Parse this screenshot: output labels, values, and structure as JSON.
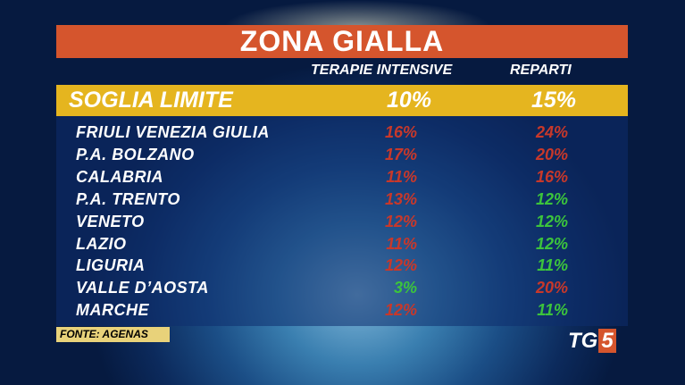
{
  "header": {
    "title": "ZONA GIALLA"
  },
  "table": {
    "columns": [
      "TERAPIE INTENSIVE",
      "REPARTI"
    ],
    "threshold": {
      "label": "SOGLIA LIMITE",
      "terapie_intensive": "10%",
      "reparti": "15%"
    },
    "rows": [
      {
        "region": "FRIULI VENEZIA GIULIA",
        "terapie_intensive": {
          "text": "16%",
          "color": "#c8382a"
        },
        "reparti": {
          "text": "24%",
          "color": "#c8382a"
        }
      },
      {
        "region": "P.A. BOLZANO",
        "terapie_intensive": {
          "text": "17%",
          "color": "#c8382a"
        },
        "reparti": {
          "text": "20%",
          "color": "#c8382a"
        }
      },
      {
        "region": "CALABRIA",
        "terapie_intensive": {
          "text": "11%",
          "color": "#c8382a"
        },
        "reparti": {
          "text": "16%",
          "color": "#c8382a"
        }
      },
      {
        "region": "P.A. TRENTO",
        "terapie_intensive": {
          "text": "13%",
          "color": "#c8382a"
        },
        "reparti": {
          "text": "12%",
          "color": "#3cc43c"
        }
      },
      {
        "region": "VENETO",
        "terapie_intensive": {
          "text": "12%",
          "color": "#c8382a"
        },
        "reparti": {
          "text": "12%",
          "color": "#3cc43c"
        }
      },
      {
        "region": "LAZIO",
        "terapie_intensive": {
          "text": "11%",
          "color": "#c8382a"
        },
        "reparti": {
          "text": "12%",
          "color": "#3cc43c"
        }
      },
      {
        "region": "LIGURIA",
        "terapie_intensive": {
          "text": "12%",
          "color": "#c8382a"
        },
        "reparti": {
          "text": "11%",
          "color": "#3cc43c"
        }
      },
      {
        "region": "VALLE D’AOSTA",
        "terapie_intensive": {
          "text": "3%",
          "color": "#3cc43c"
        },
        "reparti": {
          "text": "20%",
          "color": "#c8382a"
        }
      },
      {
        "region": "MARCHE",
        "terapie_intensive": {
          "text": "12%",
          "color": "#c8382a"
        },
        "reparti": {
          "text": "11%",
          "color": "#3cc43c"
        }
      }
    ]
  },
  "footer": {
    "source": "FONTE: AGENAS",
    "logo_text": "TG",
    "logo_number": "5"
  }
}
